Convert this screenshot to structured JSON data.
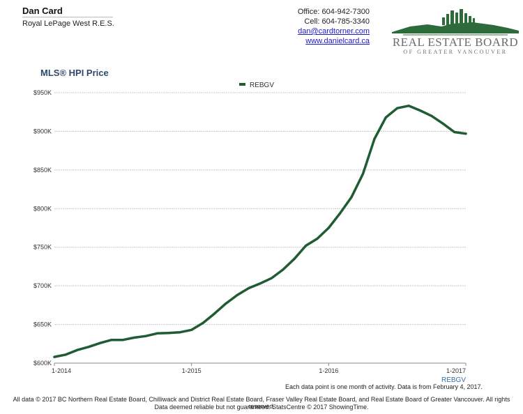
{
  "header": {
    "agent_name": "Dan Card",
    "agent_company": "Royal LePage West R.E.S.",
    "office": "Office: 604-942-7300",
    "cell": "Cell: 604-785-3340",
    "email": "dan@cardtorner.com",
    "website": "www.danielcard.ca",
    "logo_line1": "REAL ESTATE BOARD",
    "logo_line2": "OF GREATER VANCOUVER",
    "logo_color": "#2e6b3a"
  },
  "chart_data": {
    "type": "line",
    "title": "MLS® HPI Price",
    "xlabel": "",
    "ylabel": "",
    "x_axis_label": "REBGV",
    "legend": "top-center",
    "grid": true,
    "ylim": [
      600000,
      950000
    ],
    "yticks": [
      600000,
      650000,
      700000,
      750000,
      800000,
      850000,
      900000,
      950000
    ],
    "ytick_labels": [
      "$600K",
      "$650K",
      "$700K",
      "$750K",
      "$800K",
      "$850K",
      "$900K",
      "$950K"
    ],
    "xticks": [
      0,
      12,
      24,
      36
    ],
    "xtick_labels": [
      "1-2014",
      "1-2015",
      "1-2016",
      "1-2017"
    ],
    "series": [
      {
        "name": "REBGV",
        "color": "#1f5c33",
        "x": [
          0,
          1,
          2,
          3,
          4,
          5,
          6,
          7,
          8,
          9,
          10,
          11,
          12,
          13,
          14,
          15,
          16,
          17,
          18,
          19,
          20,
          21,
          22,
          23,
          24,
          25,
          26,
          27,
          28,
          29,
          30,
          31,
          32,
          33,
          34,
          35,
          36
        ],
        "values": [
          608000,
          611000,
          617000,
          621000,
          626000,
          630000,
          630000,
          633000,
          635000,
          638500,
          639000,
          640000,
          643000,
          652000,
          664000,
          677000,
          688000,
          697000,
          703000,
          710000,
          721000,
          735000,
          752000,
          761000,
          775000,
          794000,
          815000,
          845000,
          890000,
          918000,
          930000,
          933000,
          927000,
          920000,
          910000,
          899000,
          897000
        ]
      }
    ]
  },
  "footer": {
    "note": "Each data point is one month of activity. Data is from February 4, 2017.",
    "line1": "All data © 2017 BC Northern Real Estate Board, Chilliwack and District Real Estate Board, Fraser Valley Real Estate Board, and Real Estate Board of Greater Vancouver. All rights reserved.",
    "line2": "Data deemed reliable but not guaranteed. StatsCentre © 2017 ShowingTime."
  }
}
